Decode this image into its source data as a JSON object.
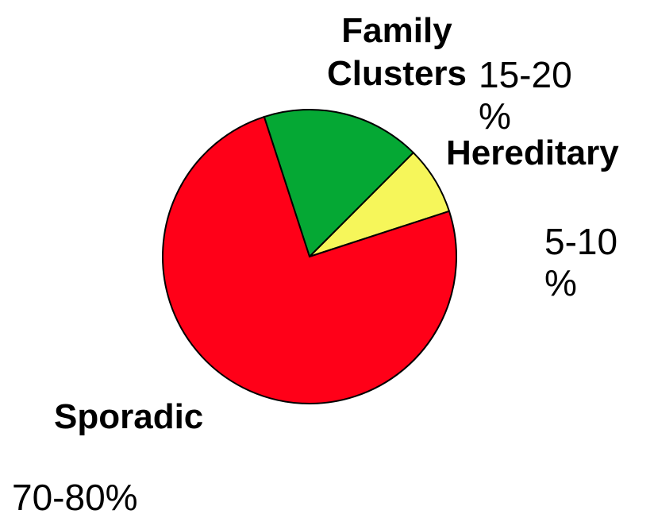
{
  "chart_data": {
    "type": "pie",
    "categories": [
      "Family Clusters",
      "Hereditary",
      "Sporadic"
    ],
    "values": [
      17.5,
      7.5,
      75
    ],
    "value_labels": [
      "15-20 %",
      "5-10 %",
      "70-80%"
    ],
    "colors": [
      "#05a834",
      "#f6f65a",
      "#ff0018"
    ]
  }
}
